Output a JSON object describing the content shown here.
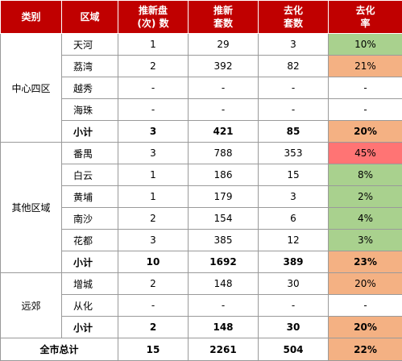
{
  "headers": {
    "category": "类别",
    "district": "区域",
    "launches_line1": "推新盘",
    "launches_line2": "(次) 数",
    "new_units_line1": "推新",
    "new_units_line2": "套数",
    "sold_units_line1": "去化",
    "sold_units_line2": "套数",
    "rate_line1": "去化",
    "rate_line2": "率"
  },
  "groups": [
    {
      "category": "中心四区",
      "rows": [
        {
          "district": "天河",
          "launches": "1",
          "new_units": "29",
          "sold_units": "3",
          "rate": "10%",
          "rate_color": "#a9d18e"
        },
        {
          "district": "荔湾",
          "launches": "2",
          "new_units": "392",
          "sold_units": "82",
          "rate": "21%",
          "rate_color": "#f4b183"
        },
        {
          "district": "越秀",
          "launches": "-",
          "new_units": "-",
          "sold_units": "-",
          "rate": "-",
          "rate_color": "#ffffff"
        },
        {
          "district": "海珠",
          "launches": "-",
          "new_units": "-",
          "sold_units": "-",
          "rate": "-",
          "rate_color": "#ffffff"
        }
      ],
      "subtotal": {
        "label": "小计",
        "launches": "3",
        "new_units": "421",
        "sold_units": "85",
        "rate": "20%",
        "rate_color": "#f4b183"
      }
    },
    {
      "category": "其他区域",
      "rows": [
        {
          "district": "番禺",
          "launches": "3",
          "new_units": "788",
          "sold_units": "353",
          "rate": "45%",
          "rate_color": "#ff7474"
        },
        {
          "district": "白云",
          "launches": "1",
          "new_units": "186",
          "sold_units": "15",
          "rate": "8%",
          "rate_color": "#a9d18e"
        },
        {
          "district": "黄埔",
          "launches": "1",
          "new_units": "179",
          "sold_units": "3",
          "rate": "2%",
          "rate_color": "#a9d18e"
        },
        {
          "district": "南沙",
          "launches": "2",
          "new_units": "154",
          "sold_units": "6",
          "rate": "4%",
          "rate_color": "#a9d18e"
        },
        {
          "district": "花都",
          "launches": "3",
          "new_units": "385",
          "sold_units": "12",
          "rate": "3%",
          "rate_color": "#a9d18e"
        }
      ],
      "subtotal": {
        "label": "小计",
        "launches": "10",
        "new_units": "1692",
        "sold_units": "389",
        "rate": "23%",
        "rate_color": "#f4b183"
      }
    },
    {
      "category": "远郊",
      "rows": [
        {
          "district": "增城",
          "launches": "2",
          "new_units": "148",
          "sold_units": "30",
          "rate": "20%",
          "rate_color": "#f4b183"
        },
        {
          "district": "从化",
          "launches": "-",
          "new_units": "-",
          "sold_units": "-",
          "rate": "-",
          "rate_color": "#ffffff"
        }
      ],
      "subtotal": {
        "label": "小计",
        "launches": "2",
        "new_units": "148",
        "sold_units": "30",
        "rate": "20%",
        "rate_color": "#f4b183"
      }
    }
  ],
  "total": {
    "label": "全市总计",
    "launches": "15",
    "new_units": "2261",
    "sold_units": "504",
    "rate": "22%",
    "rate_color": "#f4b183"
  },
  "colors": {
    "header_bg": "#c00000",
    "low_rate": "#a9d18e",
    "mid_rate": "#f4b183",
    "high_rate": "#ff7474"
  }
}
